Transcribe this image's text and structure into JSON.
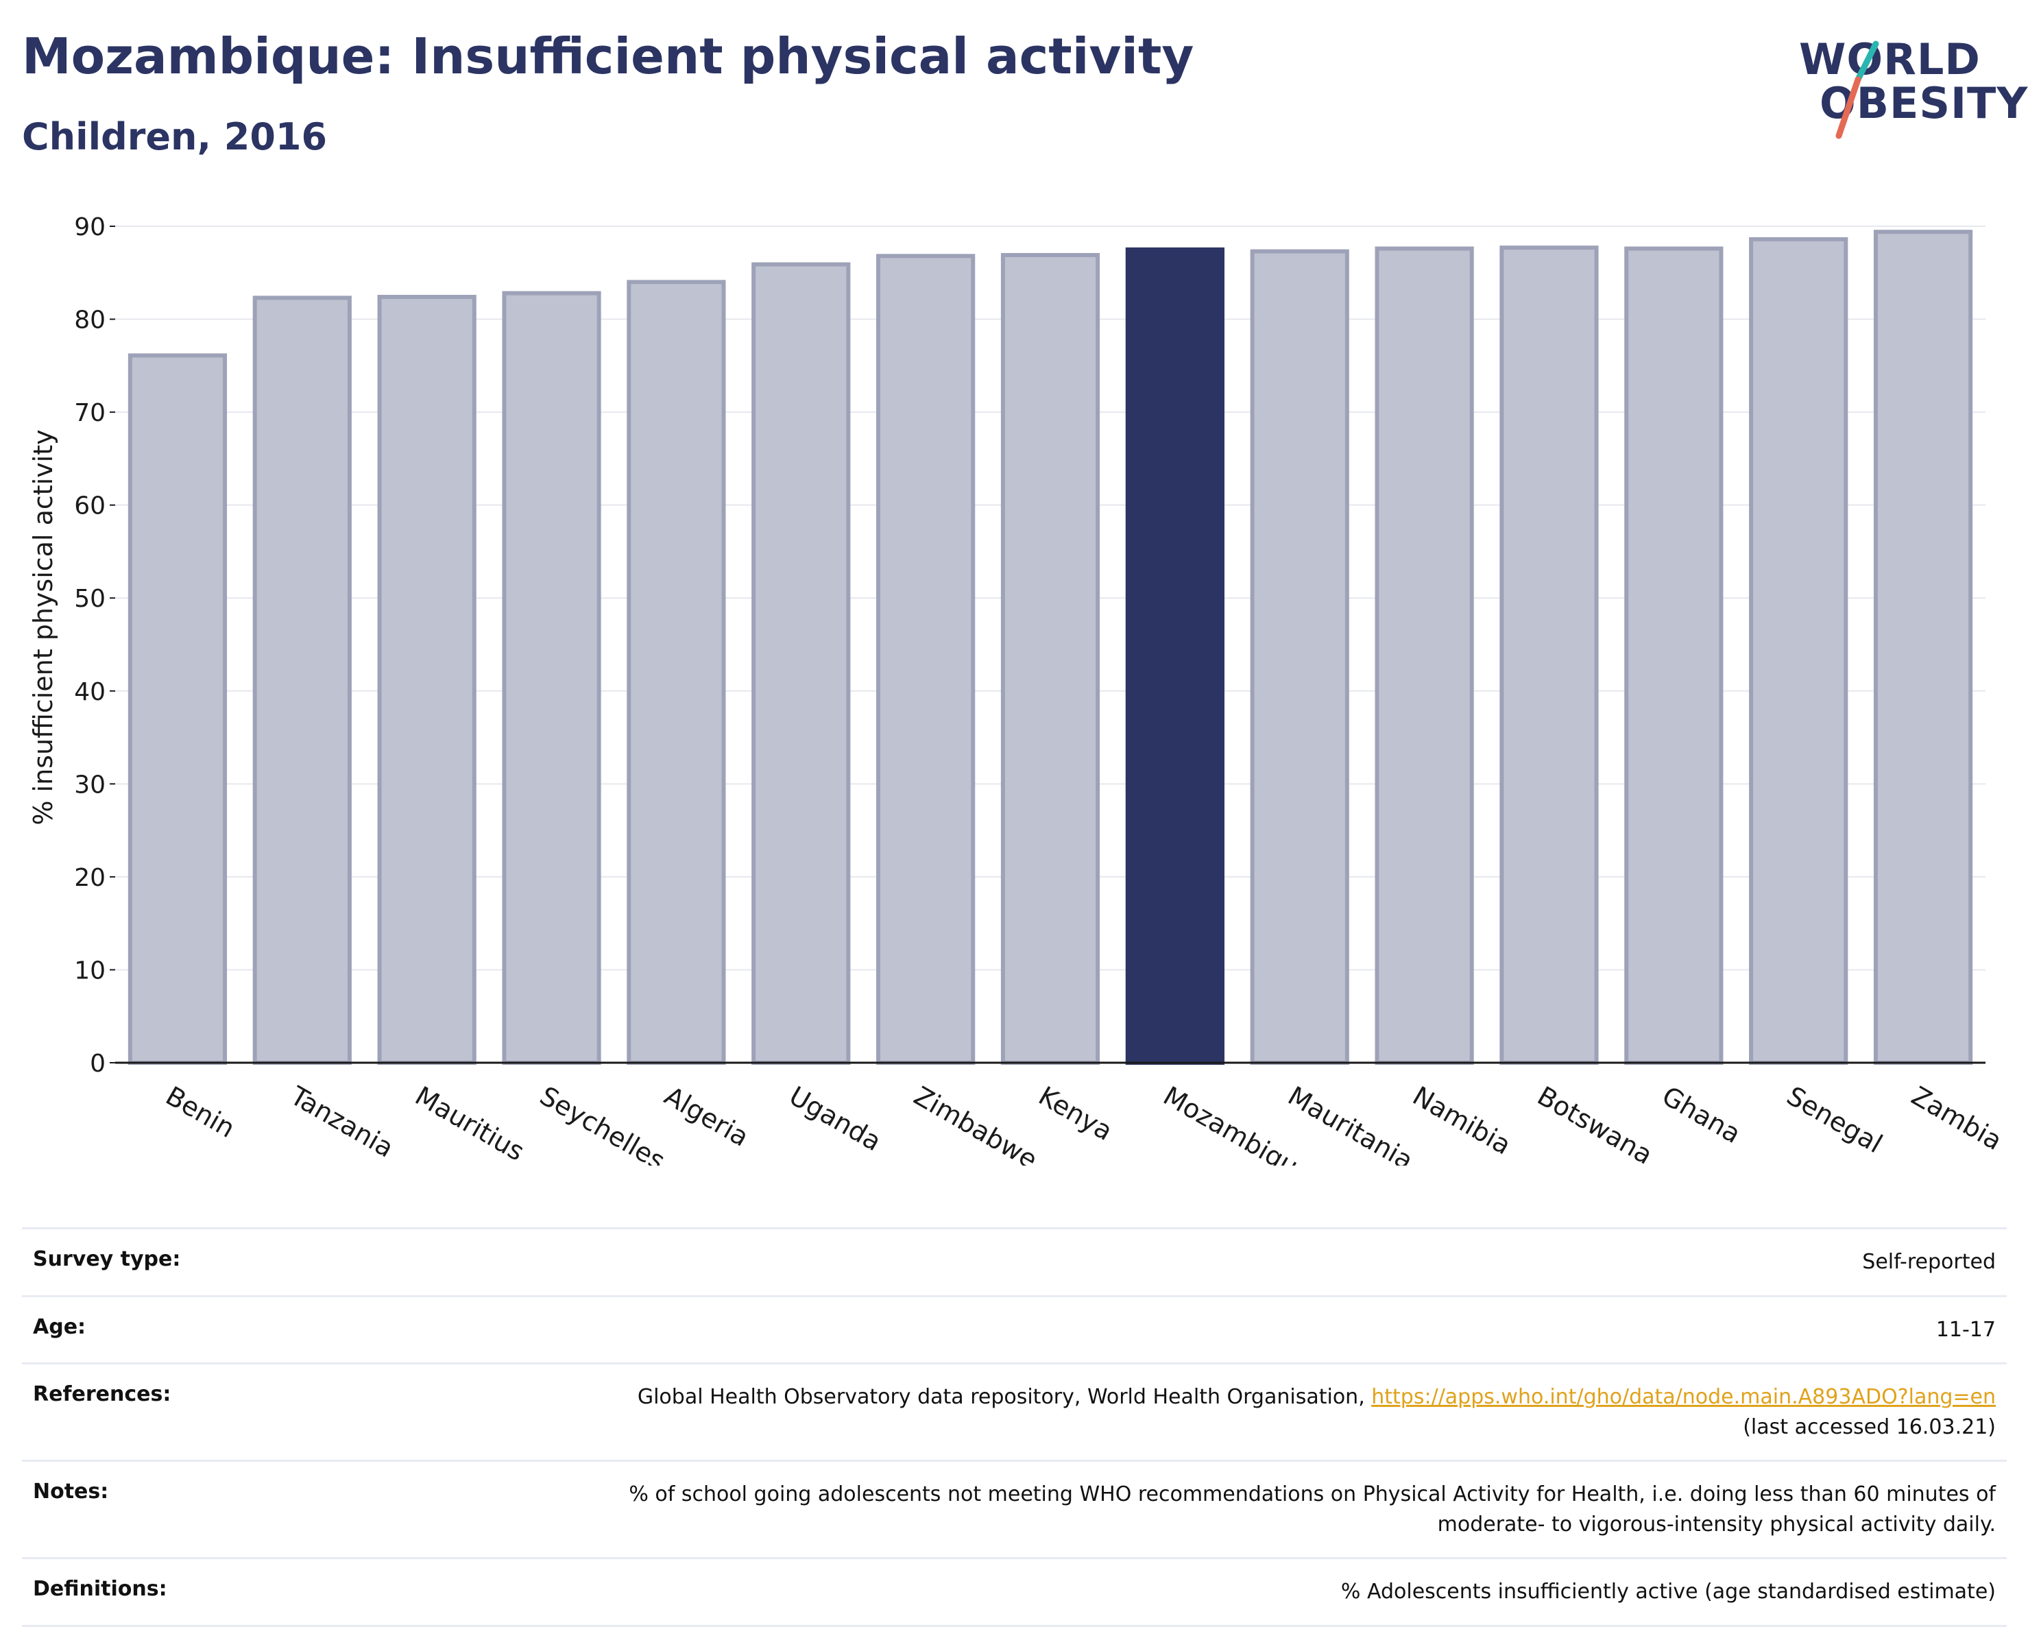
{
  "header": {
    "title": "Mozambique: Insufficient physical activity",
    "subtitle": "Children, 2016"
  },
  "logo": {
    "line1": "WORLD",
    "line2": "OBESITY",
    "text_color": "#2b3462",
    "slash_colors": [
      "#2bb5b0",
      "#e46a55"
    ]
  },
  "chart_data": {
    "type": "bar",
    "title": "Mozambique: Insufficient physical activity",
    "subtitle": "Children, 2016",
    "xlabel": "",
    "ylabel": "% insufficient physical activity",
    "ylim": [
      0,
      90
    ],
    "yticks": [
      "0",
      "10",
      "20",
      "30",
      "40",
      "50",
      "60",
      "70",
      "80",
      "90"
    ],
    "grid": true,
    "categories": [
      "Benin",
      "Tanzania",
      "Mauritius",
      "Seychelles",
      "Algeria",
      "Uganda",
      "Zimbabwe",
      "Kenya",
      "Mozambique",
      "Mauritania",
      "Namibia",
      "Botswana",
      "Ghana",
      "Senegal",
      "Zambia"
    ],
    "values": [
      76.1,
      82.3,
      82.4,
      82.8,
      84.0,
      85.9,
      86.8,
      86.9,
      87.5,
      87.3,
      87.6,
      87.7,
      87.6,
      88.6,
      89.4
    ],
    "highlight": "Mozambique",
    "colors": {
      "default_fill": "#bfc2d0",
      "default_stroke": "#9ea2b8",
      "highlight_fill": "#2b3462"
    }
  },
  "info": {
    "rows": [
      {
        "label": "Survey type:",
        "value": "Self-reported"
      },
      {
        "label": "Age:",
        "value": "11-17"
      },
      {
        "label": "References:",
        "value_prefix": "Global Health Observatory data repository, World Health Organisation, ",
        "link": "https://apps.who.int/gho/data/node.main.A893ADO?lang=en",
        "value_suffix": "(last accessed 16.03.21)"
      },
      {
        "label": "Notes:",
        "value_line1": "% of school going adolescents not meeting WHO recommendations on Physical Activity for Health, i.e. doing less than 60 minutes of",
        "value_line2": "moderate- to vigorous-intensity physical activity daily."
      },
      {
        "label": "Definitions:",
        "value": "% Adolescents insufficiently active (age standardised estimate)"
      }
    ]
  }
}
